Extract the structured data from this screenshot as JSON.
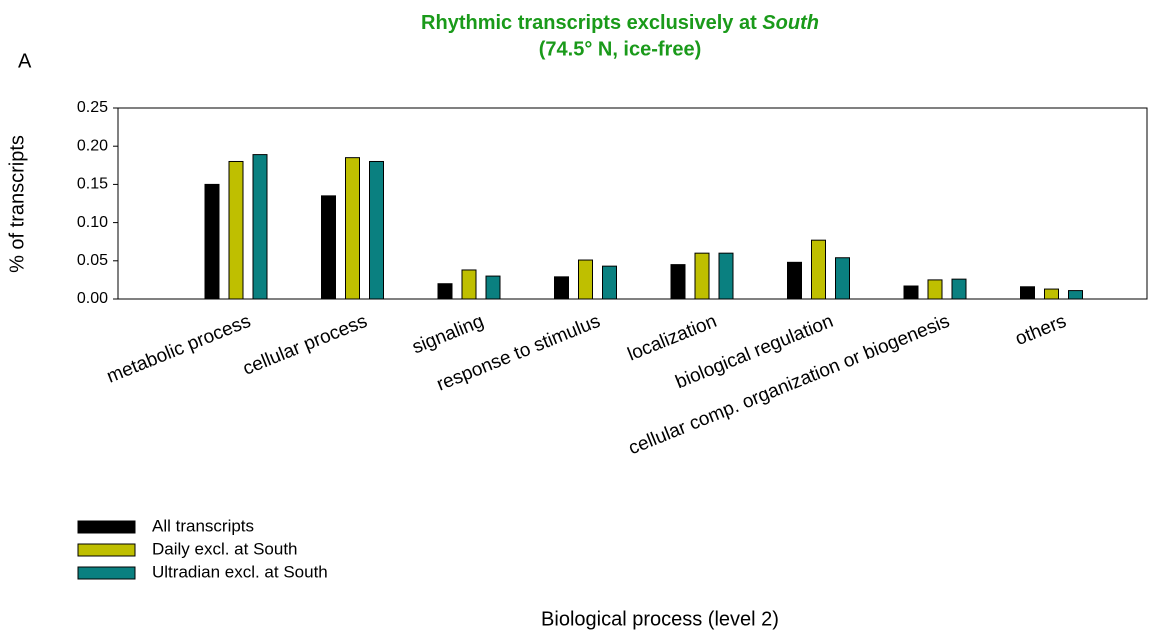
{
  "chart_data": {
    "type": "bar",
    "panel_label": "A",
    "title": [
      "Rhythmic transcripts exclusively at",
      "South"
    ],
    "subtitle": "(74.5° N, ice-free)",
    "x_label": "Biological process (level 2)",
    "y_label": "% of transcripts",
    "categories": [
      "metabolic process",
      "cellular process",
      "signaling",
      "response to stimulus",
      "localization",
      "biological regulation",
      "cellular comp. organization or biogenesis",
      "others"
    ],
    "series": [
      {
        "name": "All transcripts",
        "color": "#000000",
        "values": [
          0.15,
          0.135,
          0.02,
          0.029,
          0.045,
          0.048,
          0.017,
          0.016
        ]
      },
      {
        "name": "Daily excl. at South",
        "color": "#bfbf00",
        "values": [
          0.18,
          0.185,
          0.038,
          0.051,
          0.06,
          0.077,
          0.025,
          0.013
        ]
      },
      {
        "name": "Ultradian excl. at South",
        "color": "#0a8080",
        "values": [
          0.189,
          0.18,
          0.03,
          0.043,
          0.06,
          0.054,
          0.026,
          0.011
        ]
      }
    ],
    "ylim": [
      0,
      0.25
    ],
    "yticks": [
      {
        "value": 0,
        "label": "0.00"
      },
      {
        "value": 0.05,
        "label": "0.05"
      },
      {
        "value": 0.1,
        "label": "0.10"
      },
      {
        "value": 0.15,
        "label": "0.15"
      },
      {
        "value": 0.2,
        "label": "0.20"
      },
      {
        "value": 0.25,
        "label": "0.25"
      }
    ],
    "grid": false,
    "legend": "bottom-left"
  }
}
